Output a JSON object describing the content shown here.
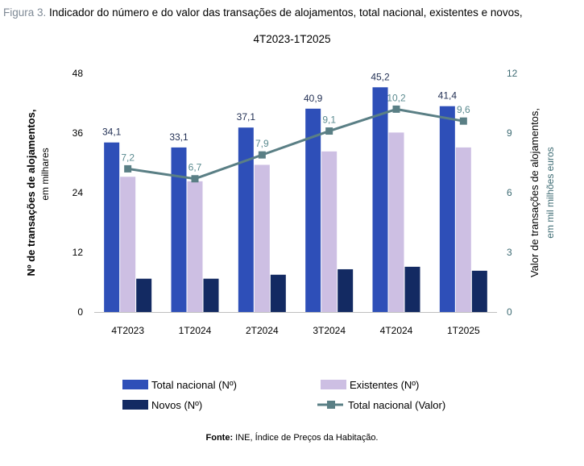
{
  "figure": {
    "label": "Figura 3.",
    "title": "Indicador do número e do valor das transações de alojamentos, total nacional, existentes e novos,",
    "subtitle": "4T2023-1T2025",
    "source_label": "Fonte:",
    "source_text": "INE, Índice de Preços da Habitação."
  },
  "colors": {
    "total": "#2e4fb8",
    "existentes": "#cdbfe3",
    "novos": "#132a62",
    "valor_line": "#5a7f85",
    "valor_label": "#5a8a8f",
    "left_axis_text": "#000000",
    "right_axis_text": "#3d6b73"
  },
  "chart_data": {
    "type": "bar",
    "categories": [
      "4T2023",
      "1T2024",
      "2T2024",
      "3T2024",
      "4T2024",
      "1T2025"
    ],
    "series": [
      {
        "name": "Total nacional (Nº)",
        "axis": "left",
        "kind": "bar",
        "values": [
          34.1,
          33.1,
          37.1,
          40.9,
          45.2,
          41.4
        ],
        "labels": [
          "34,1",
          "33,1",
          "37,1",
          "40,9",
          "45,2",
          "41,4"
        ]
      },
      {
        "name": "Existentes (Nº)",
        "axis": "left",
        "kind": "bar",
        "values": [
          27.2,
          26.3,
          29.6,
          32.3,
          36.1,
          33.1
        ]
      },
      {
        "name": "Novos (Nº)",
        "axis": "left",
        "kind": "bar",
        "values": [
          6.7,
          6.7,
          7.5,
          8.6,
          9.1,
          8.3
        ]
      },
      {
        "name": "Total nacional (Valor)",
        "axis": "right",
        "kind": "line",
        "values": [
          7.2,
          6.7,
          7.9,
          9.1,
          10.2,
          9.6
        ],
        "labels": [
          "7,2",
          "6,7",
          "7,9",
          "9,1",
          "10,2",
          "9,6"
        ]
      }
    ],
    "ylabel_left": "Nº  de transações de alojamentos,",
    "ylabel_left_sub": "em milhares",
    "ylabel_right": "Valor de transações de alojamentos,",
    "ylabel_right_sub": "em mil milhões euros",
    "ylim_left": [
      0,
      48
    ],
    "yticks_left": [
      "0",
      "12",
      "24",
      "36",
      "48"
    ],
    "ylim_right": [
      0,
      12
    ],
    "yticks_right": [
      "0",
      "3",
      "6",
      "9",
      "12"
    ],
    "grid": false,
    "legend_position": "bottom"
  }
}
